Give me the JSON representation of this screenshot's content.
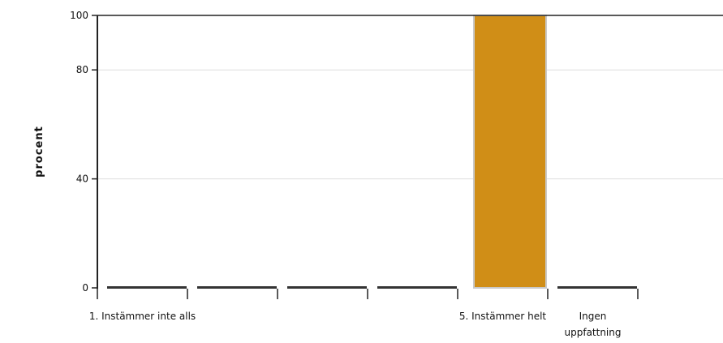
{
  "chart_data": {
    "type": "bar",
    "categories": [
      "1. Instämmer inte alls",
      "",
      "",
      "",
      "5. Instämmer helt",
      "Ingen uppfattning"
    ],
    "values": [
      0,
      0,
      0,
      0,
      100,
      0
    ],
    "ylabel": "procent",
    "xlabel": "",
    "ylim": [
      0,
      100
    ],
    "yticks": [
      0,
      40,
      80,
      100
    ],
    "grid": true,
    "colors": {
      "bar": "#D08E17",
      "bar_edge": "#C9C9C9",
      "axis": "#222222",
      "grid": "#DDDDDD",
      "baseline_segment": "#333333"
    }
  }
}
